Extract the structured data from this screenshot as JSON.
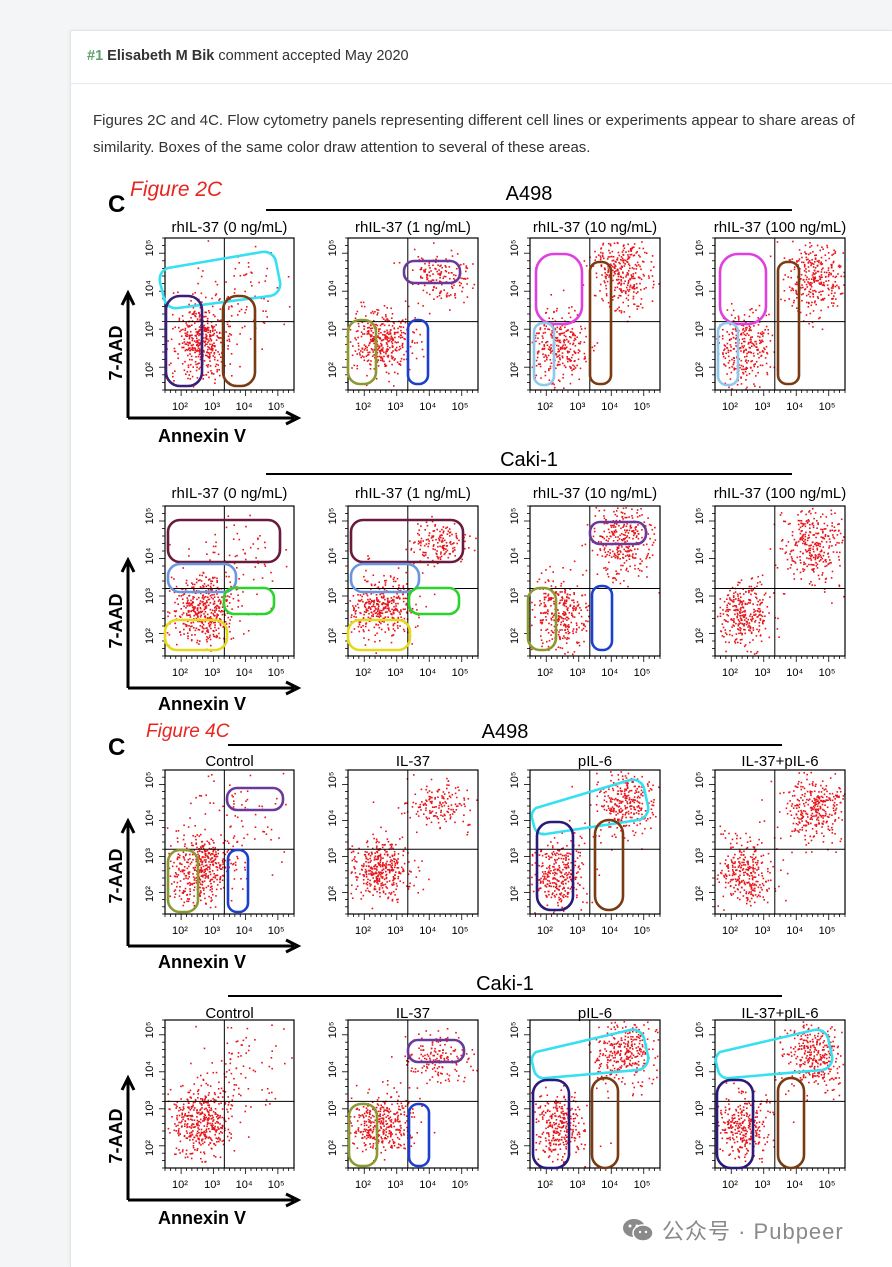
{
  "comment": {
    "number": "#1",
    "author": "Elisabeth M Bik",
    "status": "comment accepted May 2020",
    "body": "Figures 2C and 4C. Flow cytometry panels representing different cell lines or experiments appear to share areas of similarity. Boxes of the same color draw attention to several of these areas."
  },
  "figure": {
    "fig2_label": "Figure 2C",
    "fig4_label": "Figure 4C",
    "panel_letter": "C",
    "y_axis": "7-AAD",
    "x_axis": "Annexin V",
    "ticks": [
      "10²",
      "10³",
      "10⁴",
      "10⁵"
    ],
    "ytick_labels": [
      "10²",
      "10³",
      "10⁴",
      "10⁵"
    ],
    "rows": [
      {
        "cell_line": "A498",
        "panels": [
          "rhIL-37 (0 ng/mL)",
          "rhIL-37 (1 ng/mL)",
          "rhIL-37 (10 ng/mL)",
          "rhIL-37 (100 ng/mL)"
        ]
      },
      {
        "cell_line": "Caki-1",
        "panels": [
          "rhIL-37 (0 ng/mL)",
          "rhIL-37 (1 ng/mL)",
          "rhIL-37 (10 ng/mL)",
          "rhIL-37 (100 ng/mL)"
        ]
      },
      {
        "cell_line": "A498",
        "panels": [
          "Control",
          "IL-37",
          "pIL-6",
          "IL-37+pIL-6"
        ]
      },
      {
        "cell_line": "Caki-1",
        "panels": [
          "Control",
          "IL-37",
          "pIL-6",
          "IL-37+pIL-6"
        ]
      }
    ]
  },
  "watermark": {
    "text": "公众号 · Pubpeer",
    "icon": "wechat-icon"
  },
  "colors": {
    "dots": "#e8141a",
    "accent_green": "#5aa36a",
    "fig_label": "#e8251f"
  }
}
